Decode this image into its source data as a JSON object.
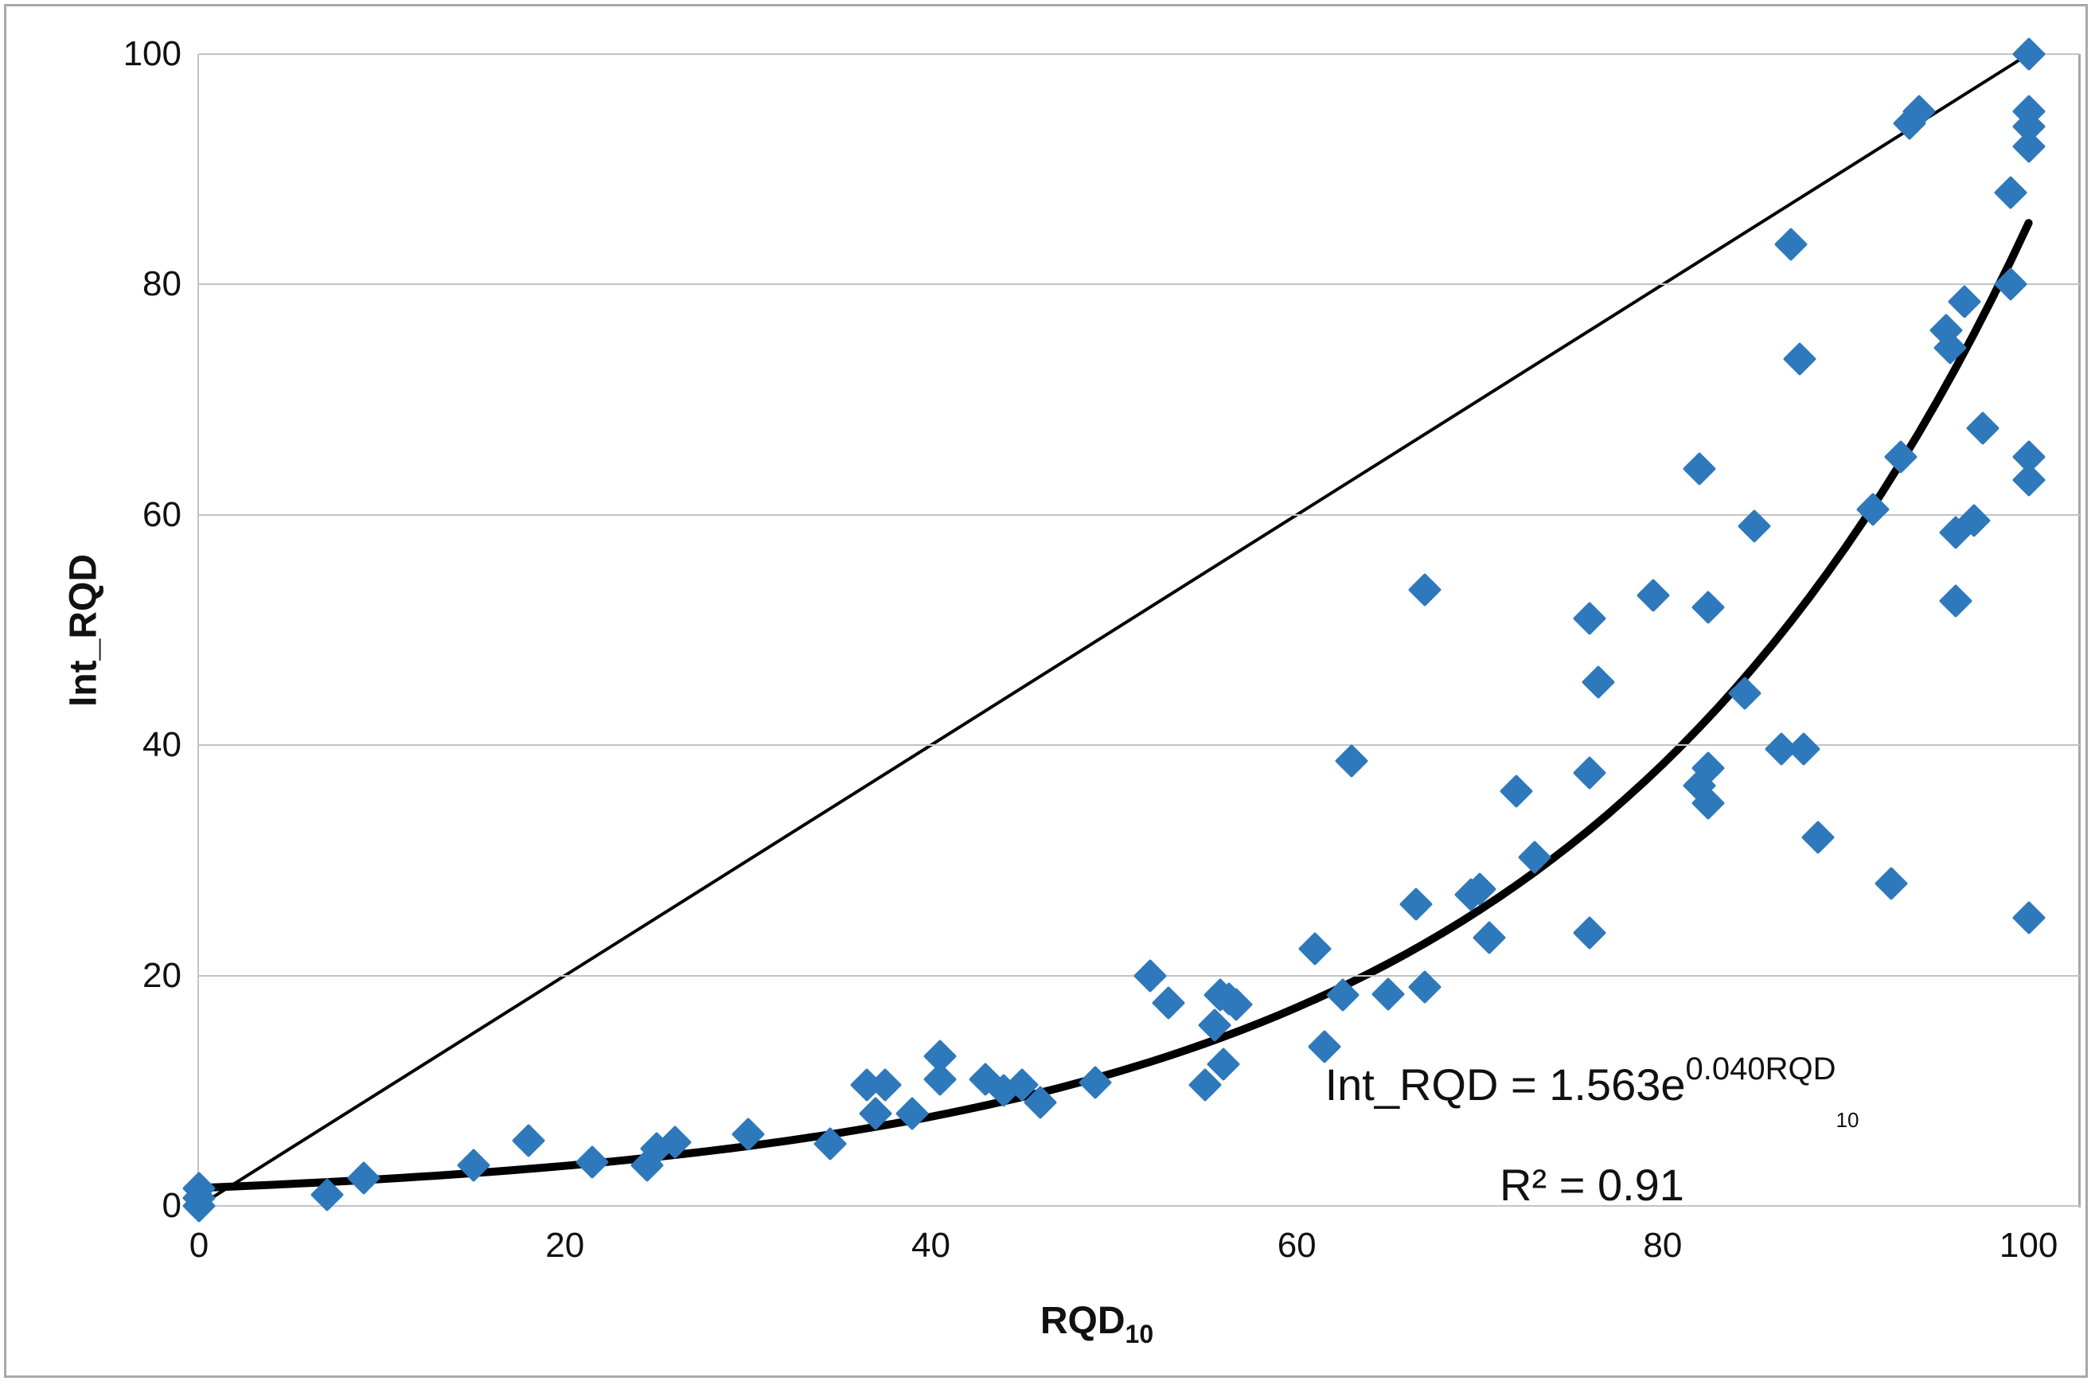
{
  "chart_data": {
    "type": "scatter",
    "title": "",
    "xlabel": "RQD",
    "xlabel_subscript": "10",
    "ylabel": "Int_RQD",
    "xlim": [
      0,
      102.8
    ],
    "ylim": [
      0,
      100
    ],
    "x_ticks": [
      0,
      20,
      40,
      60,
      80,
      100
    ],
    "y_ticks": [
      0,
      20,
      40,
      60,
      80,
      100
    ],
    "grid": "horizontal-only",
    "legend": "none",
    "marker": "diamond",
    "series": [
      {
        "name": "measured-points",
        "type": "scatter",
        "color": "#2E78BC",
        "points": [
          [
            0,
            0
          ],
          [
            0,
            0.7
          ],
          [
            0,
            1.5
          ],
          [
            7,
            1
          ],
          [
            9,
            2.4
          ],
          [
            15,
            3.5
          ],
          [
            18,
            5.7
          ],
          [
            21.5,
            3.8
          ],
          [
            24.5,
            3.5
          ],
          [
            25,
            5
          ],
          [
            26,
            5.5
          ],
          [
            30,
            6.2
          ],
          [
            34.5,
            5.4
          ],
          [
            36.5,
            10.5
          ],
          [
            37,
            8
          ],
          [
            37.5,
            10.5
          ],
          [
            39,
            8
          ],
          [
            40.5,
            11
          ],
          [
            40.5,
            13
          ],
          [
            43,
            11
          ],
          [
            44,
            10
          ],
          [
            45,
            10.5
          ],
          [
            46,
            9
          ],
          [
            49,
            10.7
          ],
          [
            52,
            20
          ],
          [
            53,
            17.6
          ],
          [
            55,
            10.5
          ],
          [
            55.5,
            15.7
          ],
          [
            55.8,
            18.3
          ],
          [
            56,
            12.3
          ],
          [
            56.3,
            18
          ],
          [
            56.7,
            17.5
          ],
          [
            61,
            22.3
          ],
          [
            61.5,
            13.8
          ],
          [
            62.5,
            18.3
          ],
          [
            63,
            38.6
          ],
          [
            65,
            18.4
          ],
          [
            66.5,
            26.2
          ],
          [
            67,
            19
          ],
          [
            67,
            53.5
          ],
          [
            69.5,
            27
          ],
          [
            70,
            27.5
          ],
          [
            70.5,
            23.3
          ],
          [
            72,
            36
          ],
          [
            73,
            30.3
          ],
          [
            76,
            23.7
          ],
          [
            76,
            37.6
          ],
          [
            76.5,
            45.5
          ],
          [
            76,
            51
          ],
          [
            79.5,
            53
          ],
          [
            82,
            36.5
          ],
          [
            82,
            64
          ],
          [
            82.5,
            35
          ],
          [
            82.5,
            38
          ],
          [
            82.5,
            52
          ],
          [
            84.5,
            44.5
          ],
          [
            85,
            59
          ],
          [
            86.5,
            39.7
          ],
          [
            87,
            83.5
          ],
          [
            87.5,
            73.5
          ],
          [
            87.7,
            39.7
          ],
          [
            88.5,
            32
          ],
          [
            91.5,
            60.5
          ],
          [
            92.5,
            28
          ],
          [
            93,
            65
          ],
          [
            93.5,
            94
          ],
          [
            94,
            95
          ],
          [
            95.5,
            76
          ],
          [
            95.7,
            74.5
          ],
          [
            96,
            52.5
          ],
          [
            96,
            58.5
          ],
          [
            96.5,
            78.5
          ],
          [
            97,
            59.5
          ],
          [
            97.5,
            67.5
          ],
          [
            99,
            80
          ],
          [
            99,
            88
          ],
          [
            100,
            25
          ],
          [
            100,
            63
          ],
          [
            100,
            65
          ],
          [
            100,
            92
          ],
          [
            100,
            93.7
          ],
          [
            100,
            95
          ],
          [
            100,
            100
          ]
        ]
      },
      {
        "name": "identity-line",
        "type": "line",
        "color": "#000000",
        "from": [
          0,
          0
        ],
        "to": [
          100,
          100
        ],
        "stroke_width": 4
      },
      {
        "name": "trend-curve",
        "type": "exponential-fit",
        "color": "#000000",
        "coefficient_a": 1.563,
        "coefficient_b": 0.04,
        "x_range": [
          0,
          100
        ],
        "stroke_width": 10
      }
    ],
    "annotation": {
      "equation_prefix": "Int_RQD = 1.563e",
      "equation_exponent": "0.040RQD",
      "equation_exponent_subscript": "10",
      "r_squared": "R² = 0.91"
    }
  },
  "colors": {
    "point_fill": "#2E78BC",
    "line_color": "#000000",
    "gridline_color": "#C3C3C3",
    "border_color": "#A8A8A8",
    "text_color": "#111111",
    "background": "#FFFFFF"
  }
}
